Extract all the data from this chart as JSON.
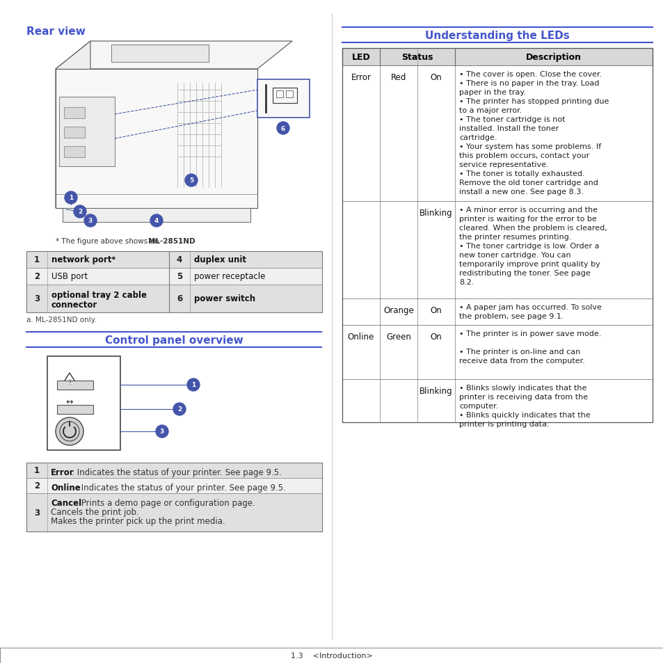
{
  "page_bg": "#ffffff",
  "blue_color": "#4455cc",
  "table_header_bg": "#d8d8d8",
  "left_title": "Rear view",
  "center_title": "Control panel overview",
  "right_title": "Understanding the LEDs",
  "table1_rows": [
    [
      "1",
      "network portᵃ",
      "4",
      "duplex unit"
    ],
    [
      "2",
      "USB port",
      "5",
      "power receptacle"
    ],
    [
      "3",
      "optional tray 2 cable\nconnector",
      "6",
      "power switch"
    ]
  ],
  "footnote_a": "a. ML-2851ND only.",
  "panel_items": [
    {
      "num": "1",
      "bold": "Error",
      "text": ": Indicates the status of your printer. See page 9.5."
    },
    {
      "num": "2",
      "bold": "Online",
      "text": ": Indicates the status of your printer. See page 9.5."
    },
    {
      "num": "3",
      "bold": "Cancel",
      "text": ": Prints a demo page or configuration page.\nCancels the print job.\nMakes the printer pick up the print media."
    }
  ],
  "led_rows": [
    {
      "led": "Error",
      "color": "Red",
      "status": "On",
      "desc": [
        "• The cover is open. Close the cover.",
        "• There is no paper in the tray. Load paper in the tray.",
        "• The printer has stopped printing due to a major error.",
        "• The toner cartridge is not installed. Install the toner cartridge.",
        "• Your system has some problems. If this problem occurs, contact your service representative.",
        "• The toner is totally exhausted. Remove the old toner cartridge and install a new one. See page 8.3."
      ]
    },
    {
      "led": "",
      "color": "",
      "status": "Blinking",
      "desc": [
        "• A minor error is occurring and the printer is waiting for the error to be cleared. When the problem is cleared, the printer resumes printing.",
        "• The toner cartridge is low. Order a new toner cartridge. You can temporarily improve print quality by redistributing the toner. See page 8.2."
      ]
    },
    {
      "led": "",
      "color": "Orange",
      "status": "On",
      "desc": [
        "• A paper jam has occurred. To solve the problem, see page 9.1."
      ]
    },
    {
      "led": "Online",
      "color": "Green",
      "status": "On",
      "desc": [
        "• The printer is in power save mode.",
        "",
        "• The printer is on-line and can receive data from the computer."
      ]
    },
    {
      "led": "",
      "color": "",
      "status": "Blinking",
      "desc": [
        "• Blinks slowly indicates that the printer is receiving data from the computer.",
        "• Blinks quickly indicates that the printer is printing data."
      ]
    }
  ],
  "page_footer": "1.3    <Introduction>"
}
